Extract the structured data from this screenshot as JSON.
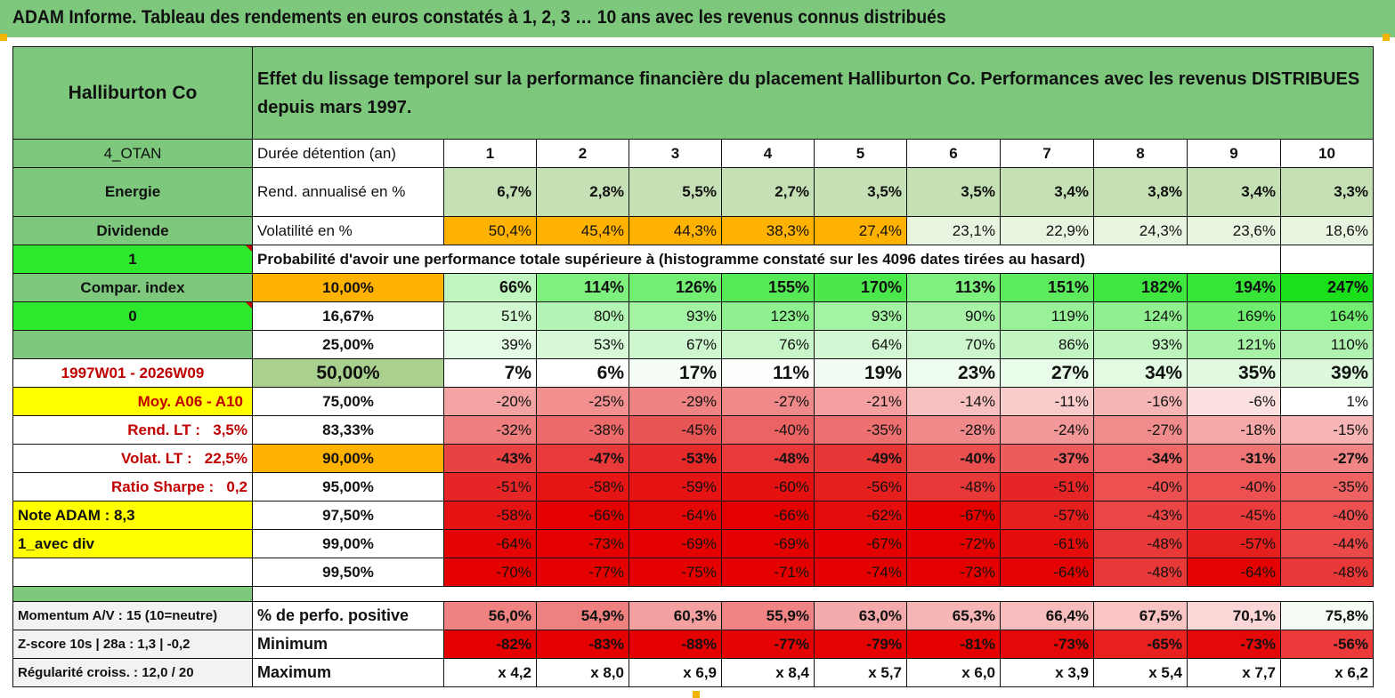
{
  "title": "ADAM Informe. Tableau des rendements en euros constatés à 1, 2, 3 … 10 ans avec les revenus connus distribués",
  "header": {
    "name": "Halliburton Co",
    "description": "Effet du lissage temporel sur la performance financière du placement Halliburton Co. Performances avec les revenus DISTRIBUES depuis mars 1997."
  },
  "left": {
    "code": "4_OTAN",
    "sector": "Energie",
    "type": "Dividende",
    "flag1": "1",
    "compar": "Compar. index",
    "flag2": "0",
    "period": "1997W01 - 2026W09",
    "moy": "Moy. A06 - A10",
    "rend_label": "Rend. LT :",
    "rend_value": "3,5%",
    "volat_label": "Volat. LT :",
    "volat_value": "22,5%",
    "sharpe_label": "Ratio Sharpe :",
    "sharpe_value": "0,2",
    "note": "Note ADAM : 8,3",
    "div": "1_avec div",
    "momentum": "Momentum A/V : 15 (10=neutre)",
    "zscore": "Z-score 10s | 28a : 1,3 | -0,2",
    "regularite": "Régularité croiss. : 12,0 / 20"
  },
  "rows": {
    "duration_label": "Durée détention (an)",
    "durations": [
      "1",
      "2",
      "3",
      "4",
      "5",
      "6",
      "7",
      "8",
      "9",
      "10"
    ],
    "rend_label": "Rend. annualisé en %",
    "rend": [
      "6,7%",
      "2,8%",
      "5,5%",
      "2,7%",
      "3,5%",
      "3,5%",
      "3,4%",
      "3,8%",
      "3,4%",
      "3,3%"
    ],
    "vol_label": "Volatilité en %",
    "vol": [
      "50,4%",
      "45,4%",
      "44,3%",
      "38,3%",
      "27,4%",
      "23,1%",
      "22,9%",
      "24,3%",
      "23,6%",
      "18,6%"
    ],
    "prob_label": "Probabilité d'avoir une performance totale supérieure à (histogramme constaté sur les 4096 dates tirées au hasard)",
    "percentiles": [
      {
        "p": "10,00%",
        "v": [
          "66%",
          "114%",
          "126%",
          "155%",
          "170%",
          "113%",
          "151%",
          "182%",
          "194%",
          "247%"
        ]
      },
      {
        "p": "16,67%",
        "v": [
          "51%",
          "80%",
          "93%",
          "123%",
          "93%",
          "90%",
          "119%",
          "124%",
          "169%",
          "164%"
        ]
      },
      {
        "p": "25,00%",
        "v": [
          "39%",
          "53%",
          "67%",
          "76%",
          "64%",
          "70%",
          "86%",
          "93%",
          "121%",
          "110%"
        ]
      },
      {
        "p": "50,00%",
        "v": [
          "7%",
          "6%",
          "17%",
          "11%",
          "19%",
          "23%",
          "27%",
          "34%",
          "35%",
          "39%"
        ]
      },
      {
        "p": "75,00%",
        "v": [
          "-20%",
          "-25%",
          "-29%",
          "-27%",
          "-21%",
          "-14%",
          "-11%",
          "-16%",
          "-6%",
          "1%"
        ]
      },
      {
        "p": "83,33%",
        "v": [
          "-32%",
          "-38%",
          "-45%",
          "-40%",
          "-35%",
          "-28%",
          "-24%",
          "-27%",
          "-18%",
          "-15%"
        ]
      },
      {
        "p": "90,00%",
        "v": [
          "-43%",
          "-47%",
          "-53%",
          "-48%",
          "-49%",
          "-40%",
          "-37%",
          "-34%",
          "-31%",
          "-27%"
        ]
      },
      {
        "p": "95,00%",
        "v": [
          "-51%",
          "-58%",
          "-59%",
          "-60%",
          "-56%",
          "-48%",
          "-51%",
          "-40%",
          "-40%",
          "-35%"
        ]
      },
      {
        "p": "97,50%",
        "v": [
          "-58%",
          "-66%",
          "-64%",
          "-66%",
          "-62%",
          "-67%",
          "-57%",
          "-43%",
          "-45%",
          "-40%"
        ]
      },
      {
        "p": "99,00%",
        "v": [
          "-64%",
          "-73%",
          "-69%",
          "-69%",
          "-67%",
          "-72%",
          "-61%",
          "-48%",
          "-57%",
          "-44%"
        ]
      },
      {
        "p": "99,50%",
        "v": [
          "-70%",
          "-77%",
          "-75%",
          "-71%",
          "-74%",
          "-73%",
          "-64%",
          "-48%",
          "-64%",
          "-48%"
        ]
      }
    ],
    "pos_label": "% de perfo. positive",
    "pos": [
      "56,0%",
      "54,9%",
      "60,3%",
      "55,9%",
      "63,0%",
      "65,3%",
      "66,4%",
      "67,5%",
      "70,1%",
      "75,8%"
    ],
    "min_label": "Minimum",
    "min": [
      "-82%",
      "-83%",
      "-88%",
      "-77%",
      "-79%",
      "-81%",
      "-73%",
      "-65%",
      "-73%",
      "-56%"
    ],
    "max_label": "Maximum",
    "max": [
      "x 4,2",
      "x 8,0",
      "x 6,9",
      "x 8,4",
      "x 5,7",
      "x 6,0",
      "x 3,9",
      "x 5,4",
      "x 7,7",
      "x 6,2"
    ]
  },
  "colors": {
    "rend_cells": [
      "#c5e0b4",
      "#c5e0b4",
      "#c5e0b4",
      "#c5e0b4",
      "#c5e0b4",
      "#c5e0b4",
      "#c5e0b4",
      "#c5e0b4",
      "#c5e0b4",
      "#c5e0b4"
    ],
    "vol_cells": [
      "#ffb200",
      "#ffb200",
      "#ffb200",
      "#ffb200",
      "#ffb200",
      "#e8f4e0",
      "#e8f4e0",
      "#e8f4e0",
      "#e8f4e0",
      "#e8f4e0"
    ],
    "percentile_cells": [
      [
        "#bff5bf",
        "#7ef07e",
        "#72ee72",
        "#55ea55",
        "#4ae84a",
        "#7ef07e",
        "#5ceb5c",
        "#3fe63f",
        "#36e536",
        "#19e019"
      ],
      [
        "#d2f8d2",
        "#b4f4b4",
        "#a4f2a4",
        "#8ef08e",
        "#a4f2a4",
        "#a8f2a8",
        "#98f198",
        "#90f090",
        "#6eed6e",
        "#72ee72"
      ],
      [
        "#e6fbe6",
        "#d6f8d6",
        "#cff7cf",
        "#c9f6c9",
        "#d2f7d2",
        "#cdf6cd",
        "#c3f5c3",
        "#bdf5bd",
        "#a8f2a8",
        "#b0f3b0"
      ],
      [
        "#ffffff",
        "#ffffff",
        "#f6fdf6",
        "#fbfefb",
        "#f3fcf3",
        "#eefcee",
        "#e9fbe9",
        "#e1fae1",
        "#e0f9e0",
        "#dcf9dc"
      ],
      [
        "#f4a3a3",
        "#f29090",
        "#ef8282",
        "#f08a8a",
        "#f4a0a0",
        "#f7c0c0",
        "#f9cccc",
        "#f6b6b6",
        "#fbe0e0",
        "#ffffff"
      ],
      [
        "#ef7e7e",
        "#ec6a6a",
        "#e85555",
        "#eb6464",
        "#ed7070",
        "#f08a8a",
        "#f29898",
        "#f18c8c",
        "#f4a8a8",
        "#f6b4b4"
      ],
      [
        "#e94242",
        "#e83a3a",
        "#e62a2a",
        "#e83a3a",
        "#e73636",
        "#eb5050",
        "#ec5c5c",
        "#ee6868",
        "#ef7474",
        "#f18484"
      ],
      [
        "#e62626",
        "#e51515",
        "#e51313",
        "#e51111",
        "#e51e1e",
        "#e83838",
        "#e62626",
        "#ec5050",
        "#ec5050",
        "#ee6262"
      ],
      [
        "#e51212",
        "#e50000",
        "#e50606",
        "#e50000",
        "#e50c0c",
        "#e50000",
        "#e51e1e",
        "#eb4646",
        "#ea3c3c",
        "#ec5050"
      ],
      [
        "#e50404",
        "#e50000",
        "#e50000",
        "#e50000",
        "#e50000",
        "#e50000",
        "#e50c0c",
        "#e83838",
        "#e51e1e",
        "#eb4848"
      ],
      [
        "#e50000",
        "#e50000",
        "#e50000",
        "#e50000",
        "#e50000",
        "#e50000",
        "#e50202",
        "#e83838",
        "#e50202",
        "#e83838"
      ]
    ],
    "pos_cells": [
      "#f08282",
      "#ef8080",
      "#f3a0a0",
      "#f08484",
      "#f4aaaa",
      "#f6b6b6",
      "#f7bcbc",
      "#f8c4c4",
      "#fad6d6",
      "#f4fcf4"
    ],
    "min_cells": [
      "#e50000",
      "#e50000",
      "#e50000",
      "#e50404",
      "#e50202",
      "#e50000",
      "#e50808",
      "#e82020",
      "#e50808",
      "#ec3a3a"
    ]
  }
}
